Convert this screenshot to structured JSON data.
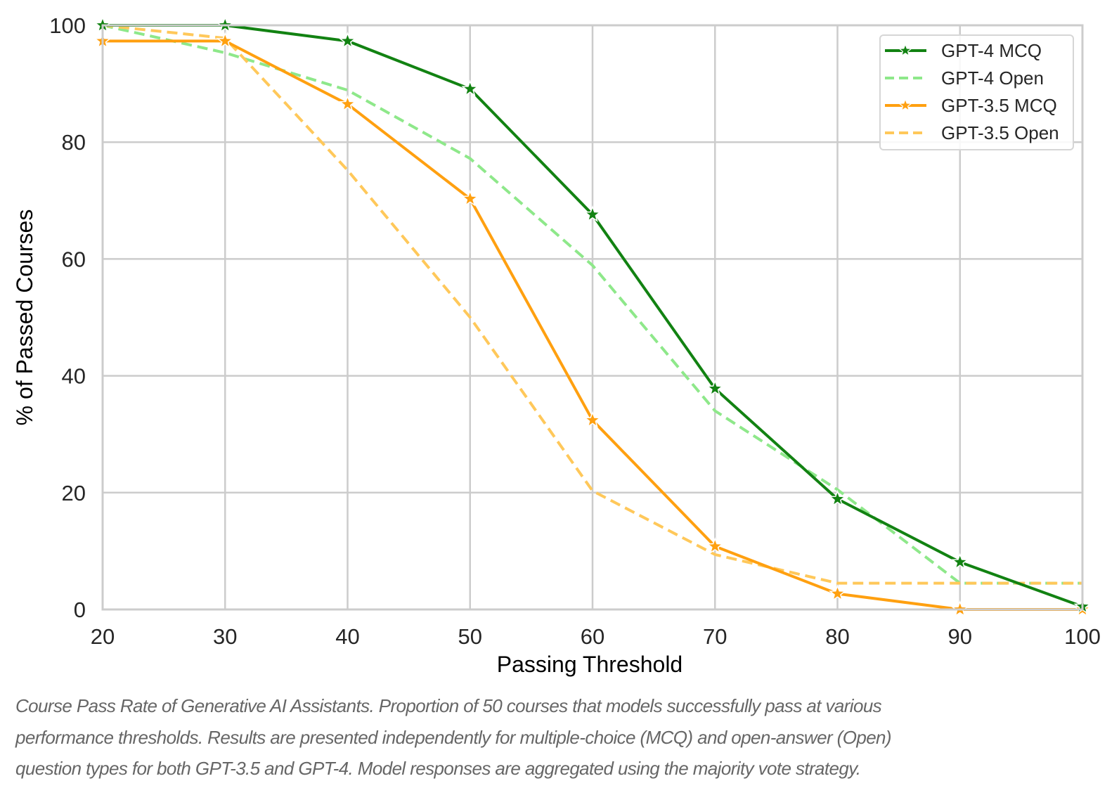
{
  "chart_data": {
    "type": "line",
    "title": "",
    "xlabel": "Passing Threshold",
    "ylabel": "% of Passed Courses",
    "x": [
      20,
      30,
      40,
      50,
      60,
      70,
      80,
      90,
      100
    ],
    "xlim": [
      20,
      100
    ],
    "ylim": [
      0,
      100
    ],
    "xticks": [
      "20",
      "30",
      "40",
      "50",
      "60",
      "70",
      "80",
      "90",
      "100"
    ],
    "yticks": [
      "0",
      "20",
      "40",
      "60",
      "80",
      "100"
    ],
    "grid": true,
    "legend_position": "top-right",
    "series": [
      {
        "name": "GPT-4 MCQ",
        "color": "#128212",
        "style": "solid",
        "marker": "star",
        "values": [
          100,
          100,
          97.3,
          89.1,
          67.6,
          37.8,
          18.9,
          8.1,
          0.5
        ]
      },
      {
        "name": "GPT-4 Open",
        "color": "#8ee88a",
        "style": "dashed",
        "marker": "none",
        "values": [
          100,
          95.3,
          88.9,
          77.2,
          58.9,
          34.0,
          20.5,
          4.5,
          4.5
        ]
      },
      {
        "name": "GPT-3.5 MCQ",
        "color": "#ffa010",
        "style": "solid",
        "marker": "star",
        "values": [
          97.3,
          97.3,
          86.5,
          70.3,
          32.4,
          10.8,
          2.7,
          0,
          0
        ]
      },
      {
        "name": "GPT-3.5 Open",
        "color": "#ffc85a",
        "style": "dashed",
        "marker": "none",
        "values": [
          100,
          97.8,
          75.2,
          50.0,
          20.3,
          9.4,
          4.5,
          4.5,
          4.5
        ]
      }
    ]
  },
  "caption": {
    "lines": [
      "Course Pass Rate of Generative AI Assistants. Proportion of 50 courses that models successfully pass at various",
      "performance thresholds. Results are presented independently for multiple-choice (MCQ) and open-answer (Open)",
      "question types for both GPT-3.5 and GPT-4. Model responses are aggregated using the majority vote strategy."
    ]
  }
}
